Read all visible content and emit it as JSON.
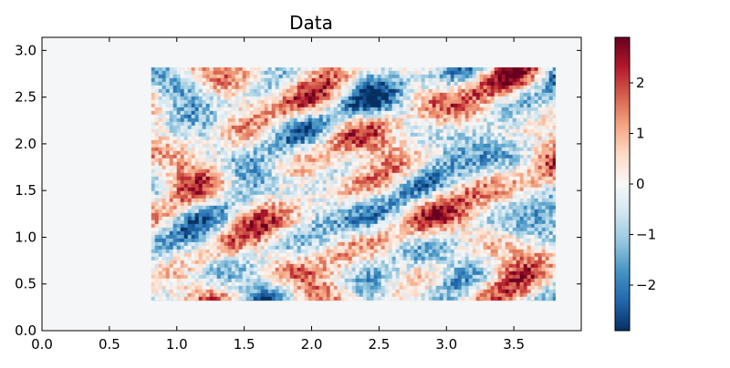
{
  "chart_data": {
    "type": "heatmap",
    "title": "Data",
    "xlabel": "",
    "ylabel": "",
    "xlim": [
      0.0,
      4.0
    ],
    "ylim": [
      0.0,
      3.14
    ],
    "x_ticks": [
      0.0,
      0.5,
      1.0,
      1.5,
      2.0,
      2.5,
      3.0,
      3.5
    ],
    "x_tick_labels": [
      "0.0",
      "0.5",
      "1.0",
      "1.5",
      "2.0",
      "2.5",
      "3.0",
      "3.5"
    ],
    "y_ticks": [
      0.0,
      0.5,
      1.0,
      1.5,
      2.0,
      2.5,
      3.0
    ],
    "y_tick_labels": [
      "0.0",
      "0.5",
      "1.0",
      "1.5",
      "2.0",
      "2.5",
      "3.0"
    ],
    "data_extent": {
      "x": [
        0.81,
        3.81
      ],
      "y": [
        0.32,
        2.82
      ]
    },
    "value_range": [
      -2.9,
      2.9
    ],
    "colormap": "RdBu_r",
    "background_color": "#f5f6f7",
    "colorbar": {
      "ticks": [
        2,
        1,
        0,
        -1,
        -2
      ],
      "tick_labels": [
        "2",
        "1",
        "0",
        "−1",
        "−2"
      ],
      "range": [
        -2.9,
        2.9
      ]
    },
    "grid": false
  }
}
